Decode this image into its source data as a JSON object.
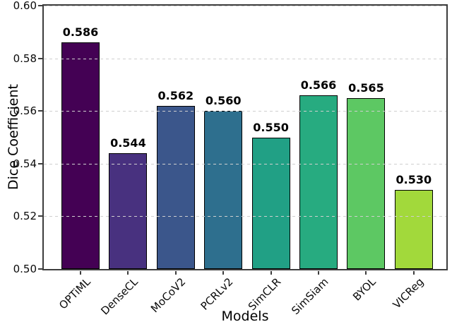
{
  "figure": {
    "background_color": "#ffffff",
    "spine_color": "#3d3d3d",
    "grid_color": "#cfcfcf",
    "grid_style": "dashed horizontal lines drawn over bars"
  },
  "chart_data": {
    "type": "bar",
    "title": "",
    "xlabel": "Models",
    "ylabel": "Dice Coefficient",
    "categories": [
      "OPTiML",
      "DenseCL",
      "MoCoV2",
      "PCRLv2",
      "SimCLR",
      "SimSiam",
      "BYOL",
      "VICReg"
    ],
    "values": [
      0.586,
      0.544,
      0.562,
      0.56,
      0.55,
      0.566,
      0.565,
      0.53
    ],
    "value_labels": [
      "0.586",
      "0.544",
      "0.562",
      "0.560",
      "0.550",
      "0.566",
      "0.565",
      "0.530"
    ],
    "bar_colors": [
      "#440154",
      "#48317f",
      "#3b568b",
      "#2e6f8e",
      "#21a085",
      "#27ab80",
      "#5dc863",
      "#a2d93b"
    ],
    "bar_edge_color": "#000000",
    "ylim": [
      0.5,
      0.6
    ],
    "yticks": [
      0.5,
      0.52,
      0.54,
      0.56,
      0.58,
      0.6
    ],
    "ytick_labels": [
      "0.50",
      "0.52",
      "0.54",
      "0.56",
      "0.58",
      "0.60"
    ],
    "grid": "on",
    "legend": null
  }
}
